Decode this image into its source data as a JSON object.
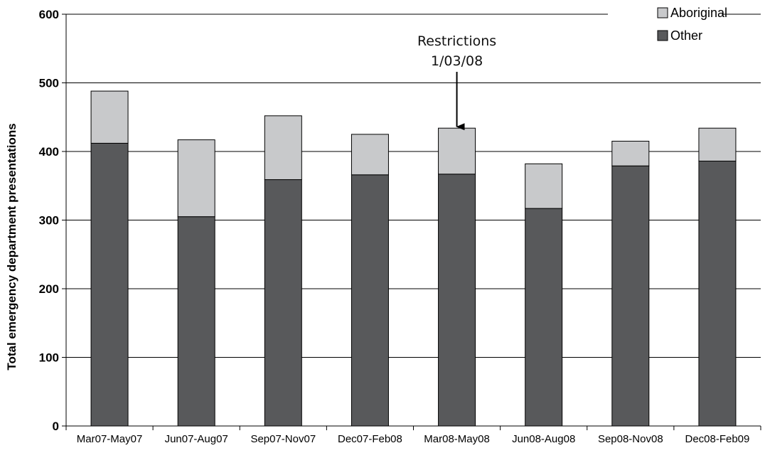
{
  "chart_data": {
    "type": "bar",
    "stacked": true,
    "categories": [
      "Mar07-May07",
      "Jun07-Aug07",
      "Sep07-Nov07",
      "Dec07-Feb08",
      "Mar08-May08",
      "Jun08-Aug08",
      "Sep08-Nov08",
      "Dec08-Feb09"
    ],
    "series": [
      {
        "name": "Other",
        "color": "#58595b",
        "values": [
          412,
          305,
          359,
          366,
          367,
          317,
          379,
          386
        ]
      },
      {
        "name": "Aboriginal",
        "color": "#c8c9cb",
        "values": [
          76,
          112,
          93,
          59,
          67,
          65,
          36,
          48
        ]
      }
    ],
    "legend": {
      "placement": "top-right",
      "order": [
        "Aboriginal",
        "Other"
      ]
    },
    "ylabel": "Total emergency department presentations",
    "xlabel": "",
    "ylim": [
      0,
      600
    ],
    "yticks": [
      0,
      100,
      200,
      300,
      400,
      500,
      600
    ],
    "grid": true,
    "annotation": {
      "lines": [
        "Restrictions",
        "1/03/08"
      ],
      "category": "Mar08-May08",
      "arrow": "down"
    }
  }
}
